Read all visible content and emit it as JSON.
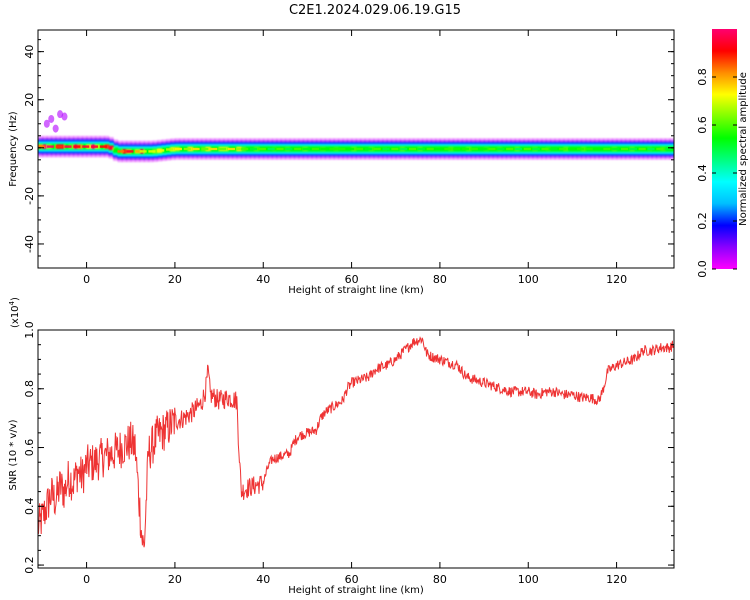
{
  "title": "C2E1.2024.029.06.19.G15",
  "chart_data": [
    {
      "type": "heatmap",
      "xlabel": "Height of straight line (km)",
      "ylabel": "Frequency (Hz)",
      "xlim": [
        -11,
        133
      ],
      "ylim": [
        -50,
        49
      ],
      "x_ticks": [
        0,
        20,
        40,
        60,
        80,
        100,
        120
      ],
      "y_ticks": [
        -40,
        -20,
        0,
        20,
        40
      ],
      "colorbar": {
        "label": "Normalized spectral amplitude",
        "range": [
          0,
          1
        ],
        "ticks": [
          0.0,
          0.2,
          0.4,
          0.6,
          0.8
        ],
        "tick_labels": [
          "0.0",
          "0.2",
          "0.4",
          "0.6",
          "0.8"
        ],
        "colormap": [
          "#ff00ff",
          "#8a00ff",
          "#0000ff",
          "#00bfff",
          "#00ffff",
          "#00ff7f",
          "#00ff00",
          "#7fff00",
          "#ffff00",
          "#ff8c00",
          "#ff0000",
          "#ff0070"
        ]
      },
      "ridge_center_hz": [
        {
          "x": -10,
          "y": 0.5
        },
        {
          "x": 5,
          "y": 0.5
        },
        {
          "x": 7,
          "y": -1.5
        },
        {
          "x": 15,
          "y": -1.5
        },
        {
          "x": 20,
          "y": -0.5
        },
        {
          "x": 132,
          "y": -0.5
        }
      ],
      "peak_segments": [
        {
          "x_start": -11,
          "x_end": 5,
          "value": 1.0
        },
        {
          "x_start": 7,
          "x_end": 12,
          "value": 0.95
        },
        {
          "x_start": 12,
          "x_end": 35,
          "value": 0.75
        },
        {
          "x_start": 35,
          "x_end": 133,
          "value": 0.6
        }
      ],
      "outliers": [
        {
          "x": -9,
          "y": 10
        },
        {
          "x": -8,
          "y": 12
        },
        {
          "x": -7,
          "y": 8
        },
        {
          "x": -6,
          "y": 14
        },
        {
          "x": -5,
          "y": 13
        }
      ]
    },
    {
      "type": "line",
      "xlabel": "Height of straight line (km)",
      "ylabel": "SNR (10 * v/v)",
      "y_multiplier": "(x10",
      "y_multiplier_exp": "4",
      "y_multiplier_close": ")",
      "xlim": [
        -11,
        133
      ],
      "ylim": [
        0.19,
        1.0
      ],
      "x_ticks": [
        0,
        20,
        40,
        60,
        80,
        100,
        120
      ],
      "y_ticks": [
        0.2,
        0.4,
        0.6,
        0.8,
        1.0
      ],
      "y_tick_labels": [
        "0.2",
        "0.4",
        "0.6",
        "0.8",
        "1.0"
      ],
      "color": "#ee3333",
      "series": [
        {
          "x": [
            -11,
            -10,
            -9,
            -8,
            -7,
            -6,
            -5,
            -4,
            -3,
            -2,
            -1,
            0,
            2,
            4,
            6,
            8,
            10,
            11,
            12,
            12.5,
            13,
            14,
            16,
            18,
            20,
            22,
            24,
            26,
            27,
            27.5,
            28,
            29,
            30,
            32,
            34,
            34.5,
            35,
            36,
            38,
            40,
            41,
            42,
            44,
            46,
            47,
            48,
            50,
            52,
            53,
            54,
            56,
            58,
            59,
            60,
            62,
            64,
            65,
            66,
            68,
            70,
            72,
            74,
            76,
            77,
            78,
            80,
            82,
            84,
            85,
            86,
            88,
            90,
            92,
            94,
            96,
            98,
            100,
            102,
            104,
            106,
            108,
            110,
            112,
            114,
            116,
            117,
            118,
            120,
            122,
            124,
            126,
            128,
            130,
            132,
            133
          ],
          "y": [
            0.33,
            0.36,
            0.4,
            0.44,
            0.42,
            0.47,
            0.45,
            0.5,
            0.48,
            0.52,
            0.5,
            0.54,
            0.55,
            0.57,
            0.58,
            0.6,
            0.62,
            0.6,
            0.4,
            0.3,
            0.25,
            0.58,
            0.64,
            0.66,
            0.69,
            0.7,
            0.72,
            0.75,
            0.8,
            0.86,
            0.78,
            0.77,
            0.76,
            0.77,
            0.76,
            0.6,
            0.45,
            0.46,
            0.47,
            0.48,
            0.53,
            0.56,
            0.57,
            0.58,
            0.62,
            0.64,
            0.65,
            0.66,
            0.7,
            0.72,
            0.74,
            0.76,
            0.8,
            0.82,
            0.83,
            0.84,
            0.86,
            0.87,
            0.88,
            0.9,
            0.93,
            0.96,
            0.97,
            0.92,
            0.91,
            0.9,
            0.89,
            0.88,
            0.86,
            0.84,
            0.83,
            0.82,
            0.81,
            0.8,
            0.79,
            0.79,
            0.79,
            0.78,
            0.79,
            0.79,
            0.78,
            0.78,
            0.77,
            0.77,
            0.76,
            0.8,
            0.86,
            0.88,
            0.89,
            0.9,
            0.93,
            0.93,
            0.94,
            0.94,
            0.95
          ]
        }
      ]
    }
  ]
}
